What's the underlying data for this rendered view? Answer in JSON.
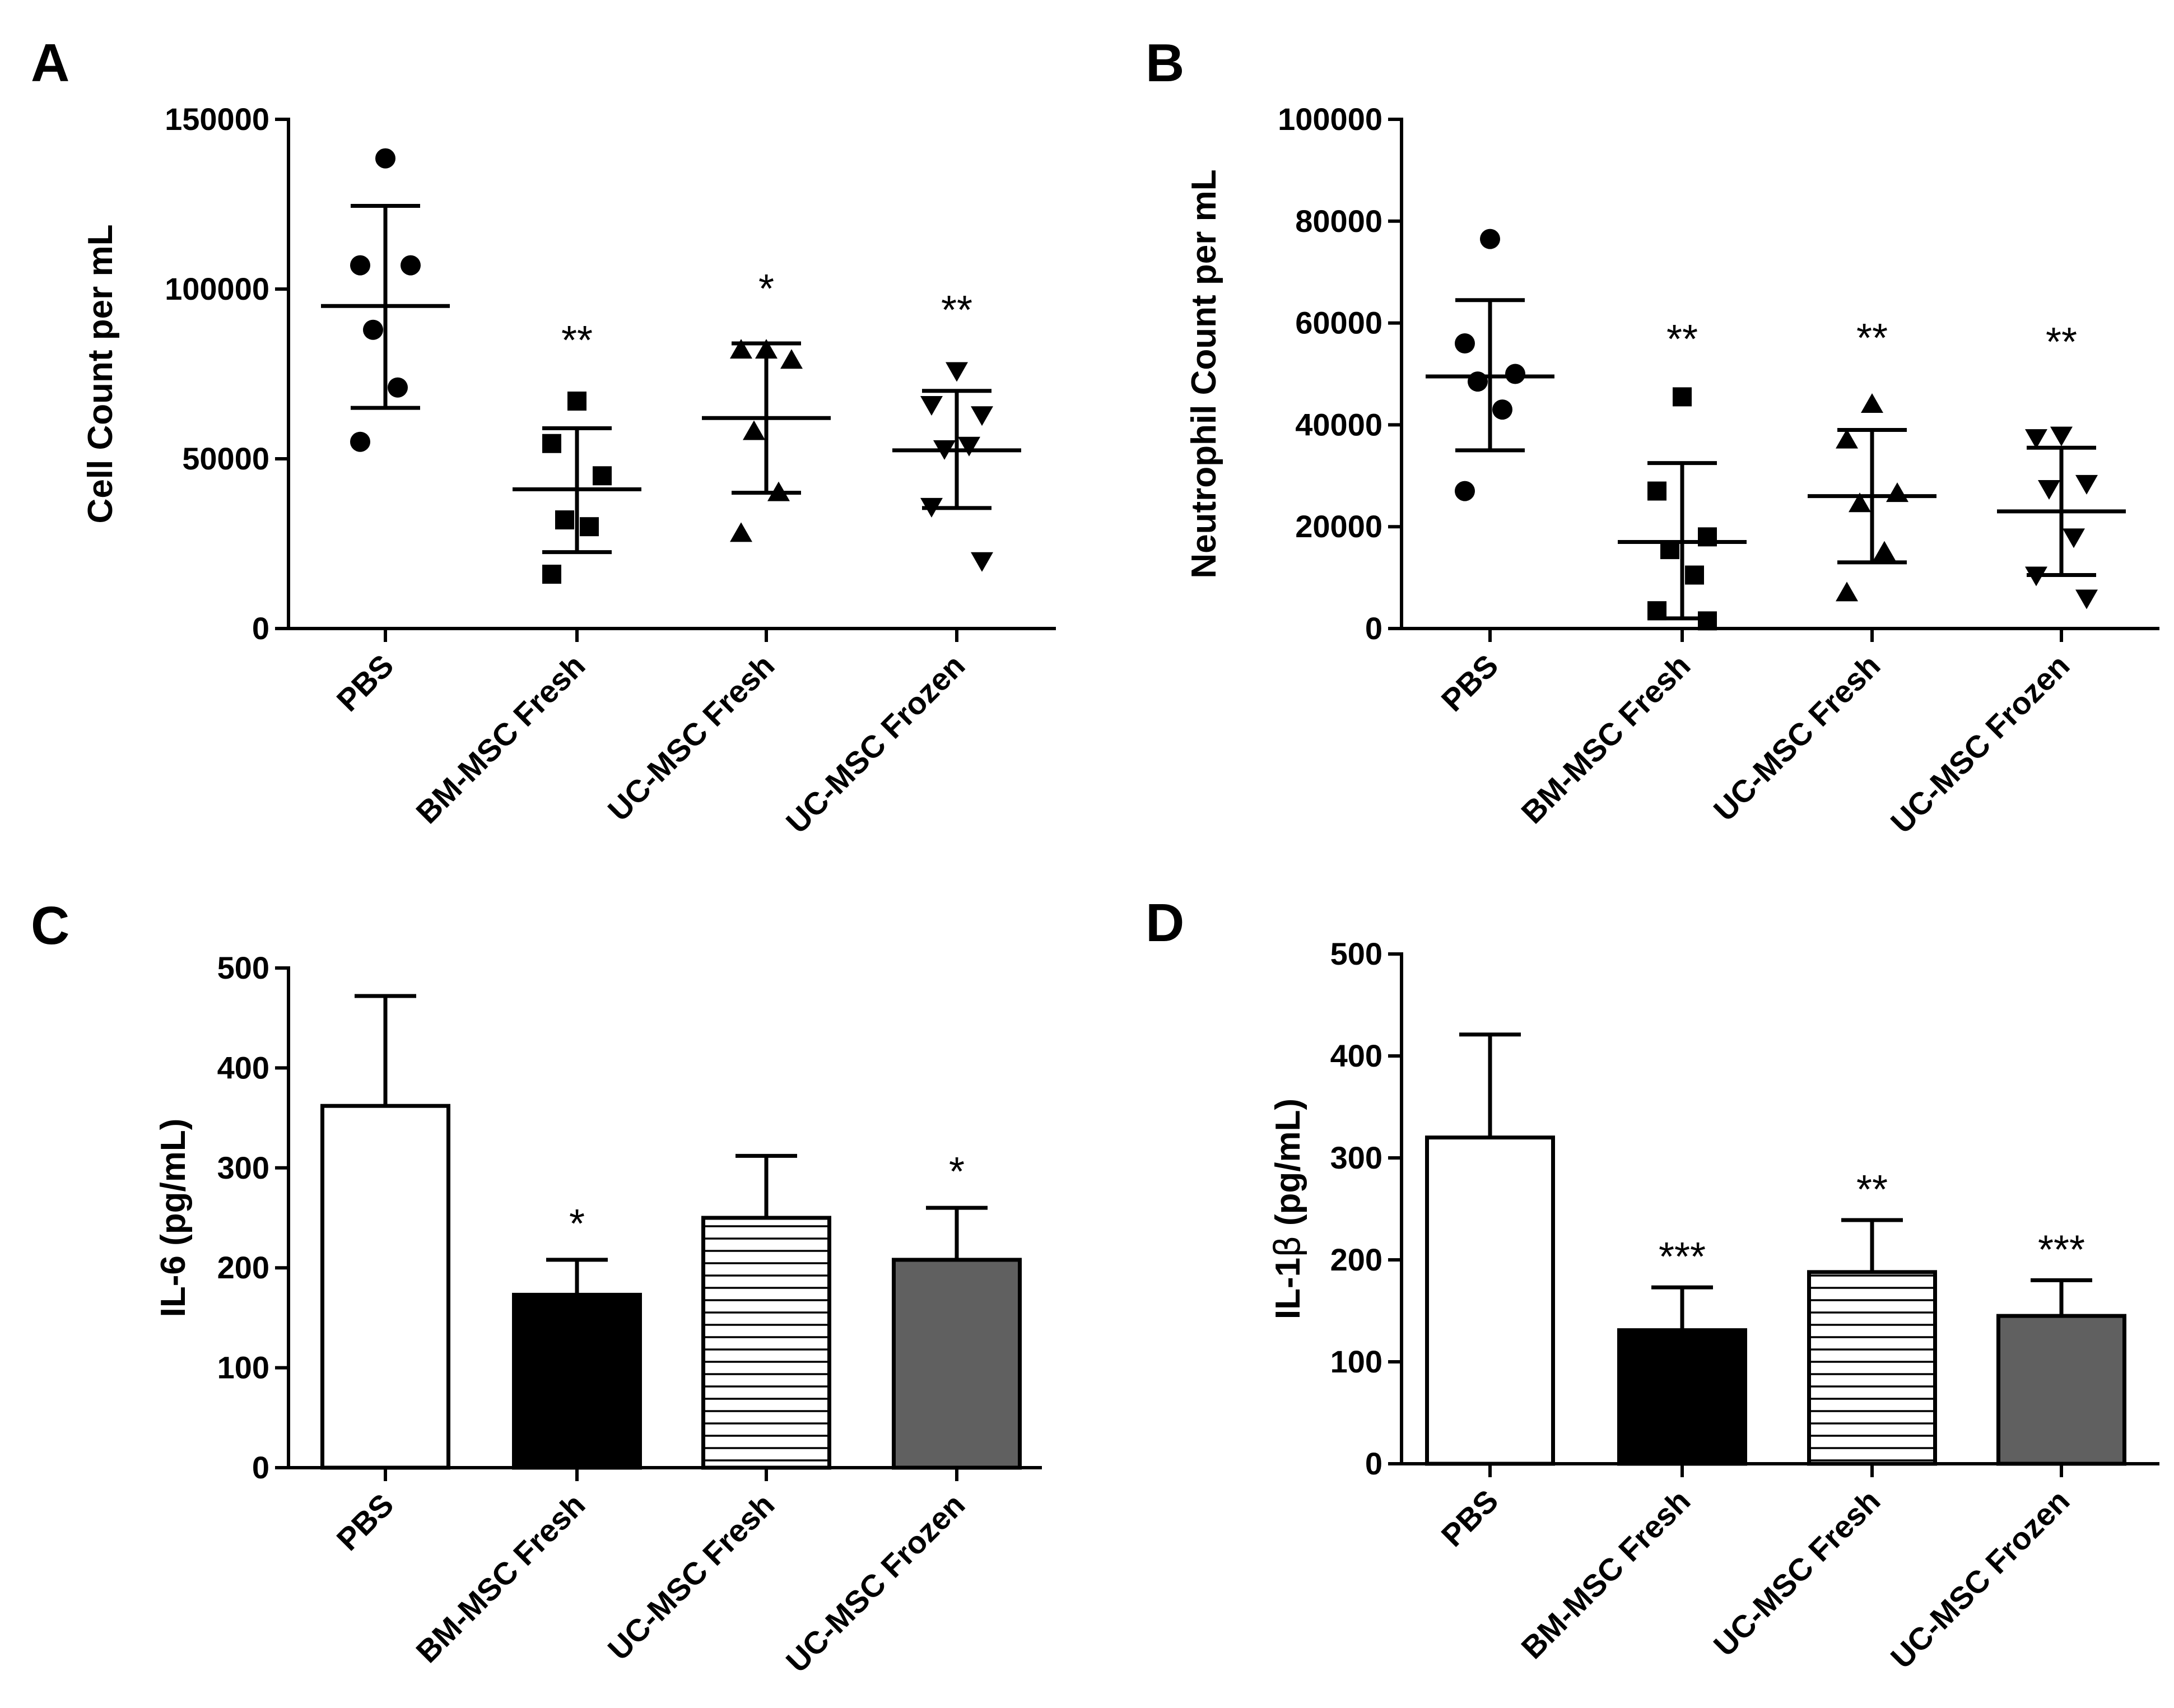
{
  "chart_data": [
    {
      "panel": "A",
      "type": "scatter",
      "ylabel": "Cell Count per mL",
      "ylim": [
        0,
        150000
      ],
      "yticks": [
        0,
        50000,
        100000,
        150000
      ],
      "categories": [
        "PBS",
        "BM-MSC Fresh",
        "UC-MSC Fresh",
        "UC-MSC Frozen"
      ],
      "markers": [
        "circle",
        "square",
        "triangle-up",
        "triangle-down"
      ],
      "series": [
        {
          "name": "PBS",
          "points": [
            138500,
            107000,
            107000,
            88000,
            71000,
            55000
          ],
          "mean": 95000,
          "sd_upper": 124500,
          "sd_lower": 65000,
          "significance": ""
        },
        {
          "name": "BM-MSC Fresh",
          "points": [
            67000,
            54500,
            45000,
            32000,
            30000,
            16000
          ],
          "mean": 41000,
          "sd_upper": 59000,
          "sd_lower": 22500,
          "significance": "**"
        },
        {
          "name": "UC-MSC Fresh",
          "points": [
            82000,
            82000,
            79000,
            58000,
            40000,
            28000
          ],
          "mean": 62000,
          "sd_upper": 84000,
          "sd_lower": 40000,
          "significance": "*"
        },
        {
          "name": "UC-MSC Frozen",
          "points": [
            76000,
            66000,
            63000,
            53000,
            54000,
            36000,
            20000
          ],
          "mean": 52500,
          "sd_upper": 70000,
          "sd_lower": 35500,
          "significance": "**"
        }
      ]
    },
    {
      "panel": "B",
      "type": "scatter",
      "ylabel": "Neutrophil Count per mL",
      "ylim": [
        0,
        100000
      ],
      "yticks": [
        0,
        20000,
        40000,
        60000,
        80000,
        100000
      ],
      "categories": [
        "PBS",
        "BM-MSC Fresh",
        "UC-MSC Fresh",
        "UC-MSC Frozen"
      ],
      "markers": [
        "circle",
        "square",
        "triangle-up",
        "triangle-down"
      ],
      "series": [
        {
          "name": "PBS",
          "points": [
            76500,
            56000,
            50000,
            48500,
            43000,
            27000
          ],
          "mean": 49500,
          "sd_upper": 64500,
          "sd_lower": 35000,
          "significance": ""
        },
        {
          "name": "BM-MSC Fresh",
          "points": [
            45500,
            27000,
            18000,
            15500,
            10500,
            3500,
            1500
          ],
          "mean": 17000,
          "sd_upper": 32500,
          "sd_lower": 2000,
          "significance": "**"
        },
        {
          "name": "UC-MSC Fresh",
          "points": [
            44000,
            37000,
            26500,
            24500,
            15000,
            7000
          ],
          "mean": 26000,
          "sd_upper": 39000,
          "sd_lower": 13000,
          "significance": "**"
        },
        {
          "name": "UC-MSC Frozen",
          "points": [
            38000,
            37500,
            28500,
            27500,
            18000,
            10500,
            6000
          ],
          "mean": 23000,
          "sd_upper": 35500,
          "sd_lower": 10500,
          "significance": "**"
        }
      ]
    },
    {
      "panel": "C",
      "type": "bar",
      "ylabel": "IL-6 (pg/mL)",
      "ylim": [
        0,
        500
      ],
      "yticks": [
        0,
        100,
        200,
        300,
        400,
        500
      ],
      "categories": [
        "PBS",
        "BM-MSC Fresh",
        "UC-MSC Fresh",
        "UC-MSC Frozen"
      ],
      "fills": [
        "white",
        "black",
        "stripes",
        "gray"
      ],
      "values": [
        362,
        173,
        250,
        208
      ],
      "error_upper": [
        472,
        208,
        312,
        260
      ],
      "significance": [
        "",
        "*",
        "",
        "*"
      ]
    },
    {
      "panel": "D",
      "type": "bar",
      "ylabel_prefix": "IL-1",
      "ylabel_greek": "β",
      "ylabel_suffix": " (pg/mL)",
      "ylim": [
        0,
        500
      ],
      "yticks": [
        0,
        100,
        200,
        300,
        400,
        500
      ],
      "categories": [
        "PBS",
        "BM-MSC Fresh",
        "UC-MSC Fresh",
        "UC-MSC Frozen"
      ],
      "fills": [
        "white",
        "black",
        "stripes",
        "gray"
      ],
      "values": [
        320,
        131,
        188,
        145
      ],
      "error_upper": [
        421,
        173,
        239,
        180
      ],
      "significance": [
        "",
        "***",
        "**",
        "***"
      ]
    }
  ],
  "colors": {
    "ink": "#000000",
    "bar_gray": "#606060",
    "bar_white": "#ffffff"
  }
}
